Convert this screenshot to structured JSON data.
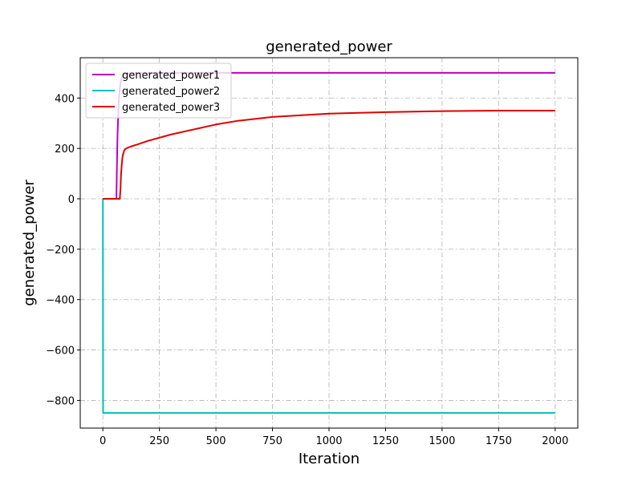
{
  "chart_data": {
    "type": "line",
    "title": "generated_power",
    "xlabel": "Iteration",
    "ylabel": "generated_power",
    "xlim": [
      -100,
      2100
    ],
    "ylim": [
      -910,
      560
    ],
    "xticks": [
      0,
      250,
      500,
      750,
      1000,
      1250,
      1500,
      1750,
      2000
    ],
    "xtick_labels": [
      "0",
      "250",
      "500",
      "750",
      "1000",
      "1250",
      "1500",
      "1750",
      "2000"
    ],
    "yticks": [
      -800,
      -600,
      -400,
      -200,
      0,
      200,
      400
    ],
    "ytick_labels": [
      "−800",
      "−600",
      "−400",
      "−200",
      "0",
      "200",
      "400"
    ],
    "grid": true,
    "legend_position": "top-left",
    "series": [
      {
        "name": "generated_power1",
        "color": "#bf00bf",
        "x": [
          0,
          60,
          62,
          65,
          70,
          75,
          80,
          85,
          90,
          100,
          150,
          300,
          1000,
          2000
        ],
        "y": [
          0,
          0,
          120,
          260,
          380,
          440,
          470,
          485,
          492,
          496,
          499,
          500,
          500,
          500
        ]
      },
      {
        "name": "generated_power2",
        "color": "#00bfbf",
        "x": [
          0,
          1,
          2,
          2000
        ],
        "y": [
          0,
          -850,
          -850,
          -850
        ]
      },
      {
        "name": "generated_power3",
        "color": "#e00000",
        "x": [
          0,
          75,
          78,
          80,
          83,
          86,
          90,
          95,
          100,
          110,
          125,
          150,
          200,
          300,
          400,
          500,
          600,
          750,
          900,
          1000,
          1250,
          1500,
          1750,
          2000
        ],
        "y": [
          0,
          0,
          40,
          90,
          130,
          160,
          180,
          192,
          198,
          203,
          208,
          215,
          230,
          255,
          275,
          295,
          310,
          325,
          333,
          338,
          344,
          348,
          350,
          350
        ]
      }
    ]
  }
}
